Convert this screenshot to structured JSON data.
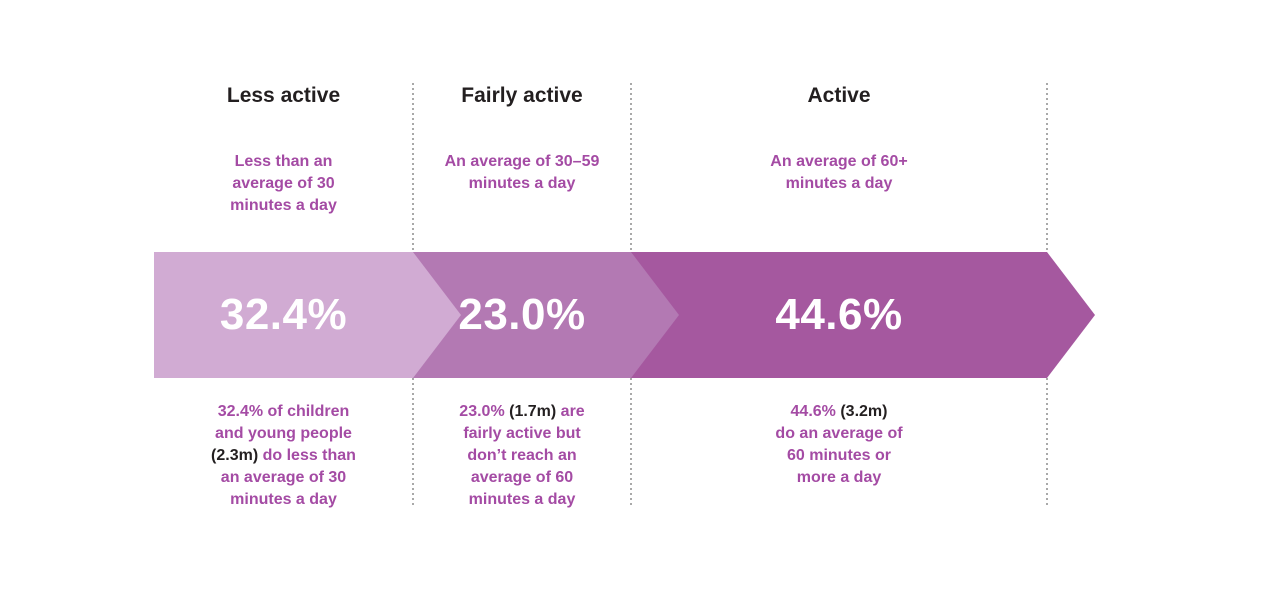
{
  "chart_data": {
    "type": "bar",
    "categories": [
      "Less active",
      "Fairly active",
      "Active"
    ],
    "values": [
      32.4,
      23.0,
      44.6
    ],
    "value_unit": "%",
    "counts": [
      "2.3m",
      "1.7m",
      "3.2m"
    ],
    "definitions": [
      "Less than an average of 30 minutes a day",
      "An average of 30-59 minutes a day",
      "An average of 60+ minutes a day"
    ],
    "layout": "horizontal arrow band, segment width proportional to order not value, shades of purple light to dark"
  },
  "colors": {
    "segment_less_active": "#d1abd3",
    "segment_fairly_active": "#b379b3",
    "segment_active": "#a5589f",
    "text_purple": "#a44ba4",
    "text_dark": "#231f20",
    "divider_gray": "#9a9a9a",
    "percent_text": "#ffffff",
    "background": "#ffffff"
  },
  "columns": [
    {
      "id": "less-active",
      "header": "Less active",
      "subtitle": "Less than an\naverage of 30\nminutes a day",
      "percent": "32.4%",
      "description": [
        [
          {
            "t": "32.4% of children"
          }
        ],
        [
          {
            "t": "and young people"
          }
        ],
        [
          {
            "t": "(2.3m)",
            "dark": true
          },
          {
            "t": " do less than"
          }
        ],
        [
          {
            "t": "an average of 30"
          }
        ],
        [
          {
            "t": "minutes a day"
          }
        ]
      ]
    },
    {
      "id": "fairly-active",
      "header": "Fairly active",
      "subtitle": "An average of 30–59\nminutes a day",
      "percent": "23.0%",
      "description": [
        [
          {
            "t": "23.0% "
          },
          {
            "t": "(1.7m)",
            "dark": true
          },
          {
            "t": " are"
          }
        ],
        [
          {
            "t": "fairly active but"
          }
        ],
        [
          {
            "t": "don’t reach an"
          }
        ],
        [
          {
            "t": "average of 60"
          }
        ],
        [
          {
            "t": "minutes a day"
          }
        ]
      ]
    },
    {
      "id": "active",
      "header": "Active",
      "subtitle": "An average of 60+\nminutes a day",
      "percent": "44.6%",
      "description": [
        [
          {
            "t": "44.6% "
          },
          {
            "t": "(3.2m)",
            "dark": true
          }
        ],
        [
          {
            "t": "do an average of"
          }
        ],
        [
          {
            "t": "60 minutes or"
          }
        ],
        [
          {
            "t": "more a day"
          }
        ]
      ]
    }
  ]
}
